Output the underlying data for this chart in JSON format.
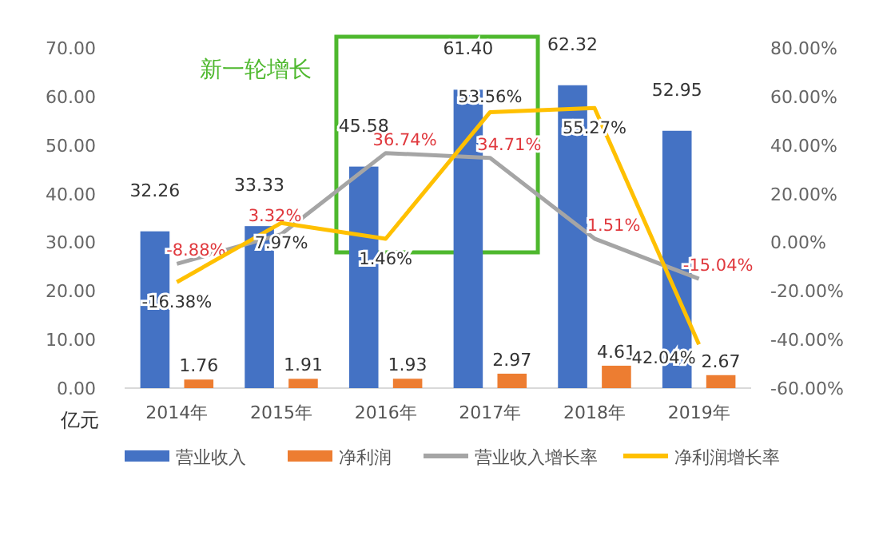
{
  "chart_data": {
    "type": "bar",
    "categories": [
      "2014年",
      "2015年",
      "2016年",
      "2017年",
      "2018年",
      "2019年"
    ],
    "ylabel": "亿元",
    "ylim": [
      0,
      70
    ],
    "yticks": [
      {
        "value": 0,
        "label": "0.00"
      },
      {
        "value": 10,
        "label": "10.00"
      },
      {
        "value": 20,
        "label": "20.00"
      },
      {
        "value": 30,
        "label": "30.00"
      },
      {
        "value": 40,
        "label": "40.00"
      },
      {
        "value": 50,
        "label": "50.00"
      },
      {
        "value": 60,
        "label": "60.00"
      },
      {
        "value": 70,
        "label": "70.00"
      }
    ],
    "y2lim": [
      -60,
      80
    ],
    "y2ticks": [
      {
        "value": -60,
        "label": "-60.00%"
      },
      {
        "value": -40,
        "label": "-40.00%"
      },
      {
        "value": -20,
        "label": "-20.00%"
      },
      {
        "value": 0,
        "label": "0.00%"
      },
      {
        "value": 20,
        "label": "20.00%"
      },
      {
        "value": 40,
        "label": "40.00%"
      },
      {
        "value": 60,
        "label": "60.00%"
      },
      {
        "value": 80,
        "label": "80.00%"
      }
    ],
    "series": [
      {
        "name": "营业收入",
        "type": "bar",
        "color": "#4472c4",
        "values": [
          32.26,
          33.33,
          45.58,
          61.4,
          62.32,
          52.95
        ],
        "value_labels": [
          "32.26",
          "33.33",
          "45.58",
          "61.40",
          "62.32",
          "52.95"
        ]
      },
      {
        "name": "净利润",
        "type": "bar",
        "color": "#ed7d31",
        "values": [
          1.76,
          1.91,
          1.93,
          2.97,
          4.61,
          2.67
        ],
        "value_labels": [
          "1.76",
          "1.91",
          "1.93",
          "2.97",
          "4.61",
          "2.67"
        ]
      },
      {
        "name": "营业收入增长率",
        "type": "line",
        "axis": "y2",
        "color": "#a5a5a5",
        "values": [
          -8.88,
          3.32,
          36.74,
          34.71,
          1.51,
          -15.04
        ],
        "value_labels": [
          "-8.88%",
          "3.32%",
          "36.74%",
          "34.71%",
          "1.51%",
          "-15.04%"
        ]
      },
      {
        "name": "净利润增长率",
        "type": "line",
        "axis": "y2",
        "color": "#ffc000",
        "values": [
          -16.38,
          7.97,
          1.46,
          53.56,
          55.27,
          -42.04
        ],
        "value_labels": [
          "-16.38%",
          "7.97%",
          "1.46%",
          "53.56%",
          "55.27%",
          "-42.04%"
        ]
      }
    ],
    "annotations": [
      "新一轮增长"
    ],
    "grid": false,
    "legend": "bottom",
    "marker": "none",
    "line_style": "solid"
  }
}
